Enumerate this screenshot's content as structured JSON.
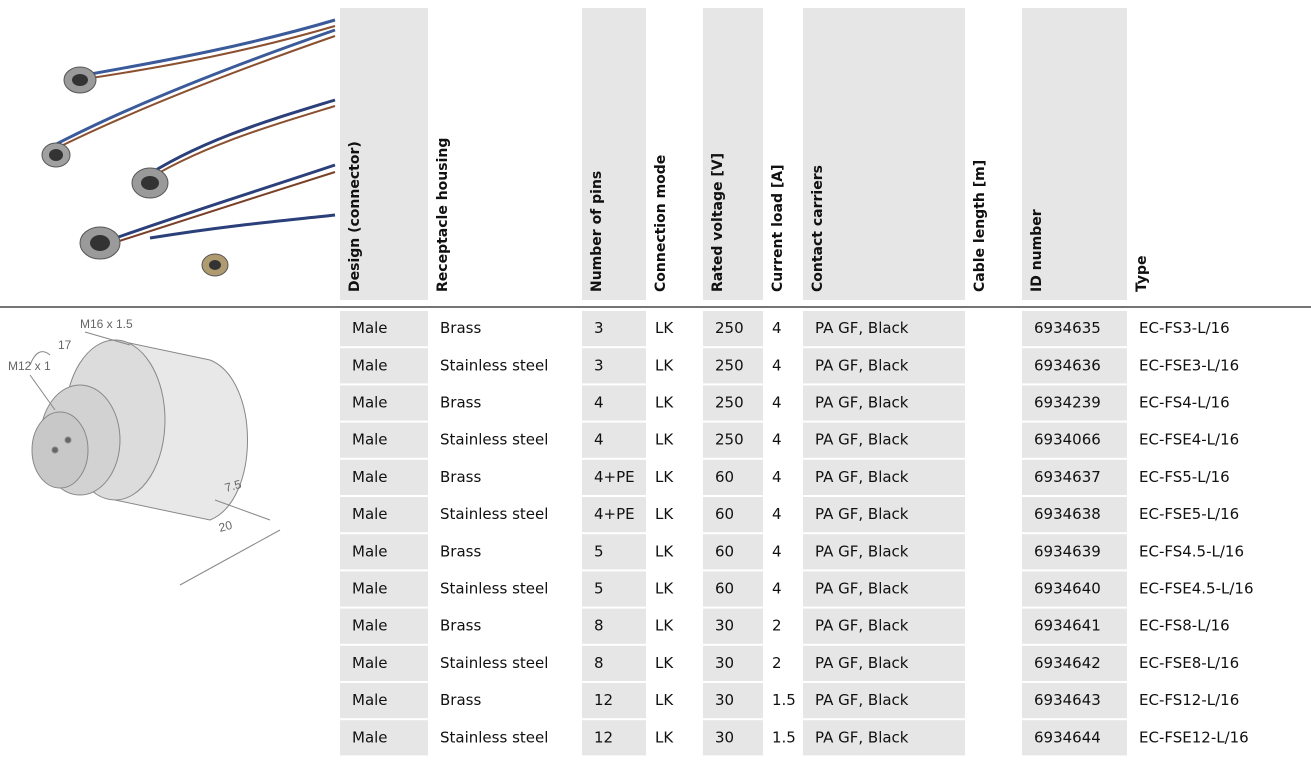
{
  "table": {
    "headers": [
      "Design (connector)",
      "Receptacle housing",
      "Number of pins",
      "Connection mode",
      "Rated voltage [V]",
      "Current load [A]",
      "Contact carriers",
      "Cable length [m]",
      "ID number",
      "Type"
    ],
    "rows": [
      {
        "design": "Male",
        "housing": "Brass",
        "pins": "3",
        "mode": "LK",
        "voltage": 250,
        "current": 4,
        "carriers": "PA GF, Black",
        "id": 6934635,
        "type": "EC-FS3-L/16"
      },
      {
        "design": "Male",
        "housing": "Stainless steel",
        "pins": "3",
        "mode": "LK",
        "voltage": 250,
        "current": 4,
        "carriers": "PA GF, Black",
        "id": 6934636,
        "type": "EC-FSE3-L/16"
      },
      {
        "design": "Male",
        "housing": "Brass",
        "pins": "4",
        "mode": "LK",
        "voltage": 250,
        "current": 4,
        "carriers": "PA GF, Black",
        "id": 6934239,
        "type": "EC-FS4-L/16"
      },
      {
        "design": "Male",
        "housing": "Stainless steel",
        "pins": "4",
        "mode": "LK",
        "voltage": 250,
        "current": 4,
        "carriers": "PA GF, Black",
        "id": 6934066,
        "type": "EC-FSE4-L/16"
      },
      {
        "design": "Male",
        "housing": "Brass",
        "pins": "4+PE",
        "mode": "LK",
        "voltage": 60,
        "current": 4,
        "carriers": "PA GF, Black",
        "id": 6934637,
        "type": "EC-FS5-L/16"
      },
      {
        "design": "Male",
        "housing": "Stainless steel",
        "pins": "4+PE",
        "mode": "LK",
        "voltage": 60,
        "current": 4,
        "carriers": "PA GF, Black",
        "id": 6934638,
        "type": "EC-FSE5-L/16"
      },
      {
        "design": "Male",
        "housing": "Brass",
        "pins": "5",
        "mode": "LK",
        "voltage": 60,
        "current": 4,
        "carriers": "PA GF, Black",
        "id": 6934639,
        "type": "EC-FS4.5-L/16"
      },
      {
        "design": "Male",
        "housing": "Stainless steel",
        "pins": "5",
        "mode": "LK",
        "voltage": 60,
        "current": 4,
        "carriers": "PA GF, Black",
        "id": 6934640,
        "type": "EC-FSE4.5-L/16"
      },
      {
        "design": "Male",
        "housing": "Brass",
        "pins": "8",
        "mode": "LK",
        "voltage": 30,
        "current": 2,
        "carriers": "PA GF, Black",
        "id": 6934641,
        "type": "EC-FS8-L/16"
      },
      {
        "design": "Male",
        "housing": "Stainless steel",
        "pins": "8",
        "mode": "LK",
        "voltage": 30,
        "current": 2,
        "carriers": "PA GF, Black",
        "id": 6934642,
        "type": "EC-FSE8-L/16"
      },
      {
        "design": "Male",
        "housing": "Brass",
        "pins": "12",
        "mode": "LK",
        "voltage": 30,
        "current": 1.5,
        "carriers": "PA GF, Black",
        "id": 6934643,
        "type": "EC-FS12-L/16"
      },
      {
        "design": "Male",
        "housing": "Stainless steel",
        "pins": "12",
        "mode": "LK",
        "voltage": 30,
        "current": 1.5,
        "carriers": "PA GF, Black",
        "id": 6934644,
        "type": "EC-FSE12-L/16"
      }
    ]
  },
  "drawing": {
    "labels": [
      "M16 x 1.5",
      "17",
      "M12 x 1",
      "7.5",
      "20"
    ]
  }
}
